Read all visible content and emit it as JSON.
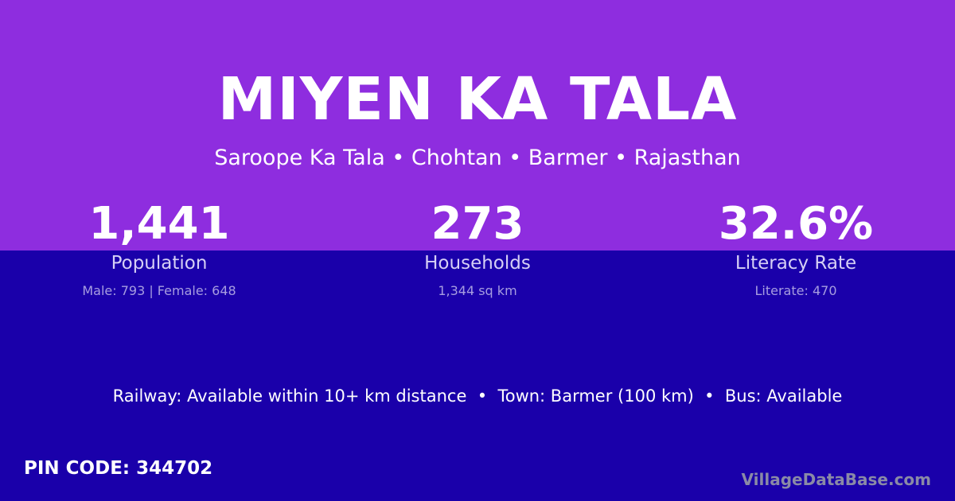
{
  "colors": {
    "top_background": "#8e2ddf",
    "bottom_background": "#1a00aa"
  },
  "title": "MIYEN KA TALA",
  "subtitle": "Saroope Ka Tala • Chohtan • Barmer • Rajasthan",
  "stats": [
    {
      "value": "1,441",
      "label": "Population",
      "detail": "Male: 793 | Female: 648"
    },
    {
      "value": "273",
      "label": "Households",
      "detail": "1,344 sq km"
    },
    {
      "value": "32.6%",
      "label": "Literacy Rate",
      "detail": "Literate: 470"
    }
  ],
  "connectivity": "Railway: Available within 10+ km distance  •  Town: Barmer (100 km)  •  Bus: Available",
  "pin_code": "PIN CODE: 344702",
  "brand": "VillageDataBase.com"
}
